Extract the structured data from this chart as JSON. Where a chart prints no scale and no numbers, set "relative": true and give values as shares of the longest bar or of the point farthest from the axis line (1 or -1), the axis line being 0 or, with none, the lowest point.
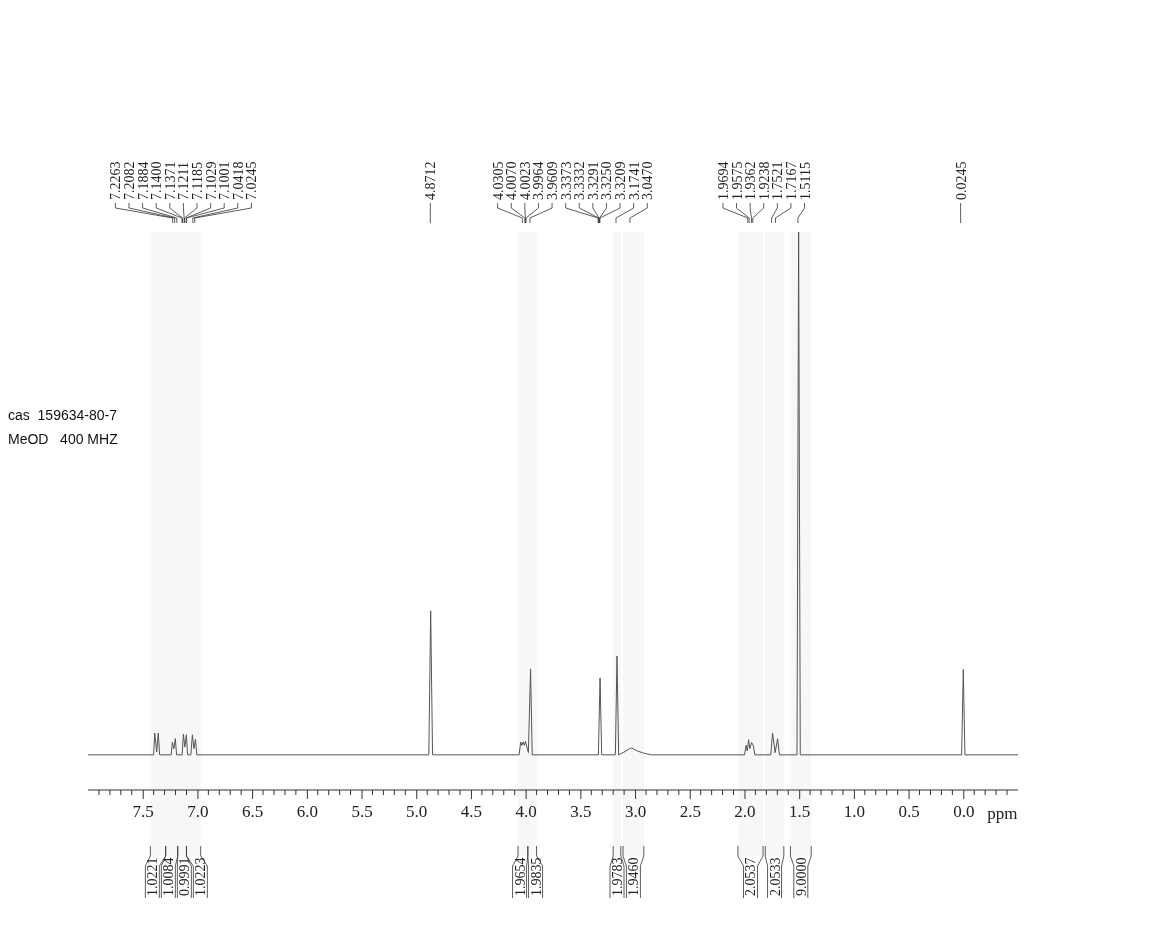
{
  "chart_data": {
    "type": "line",
    "relative": true,
    "xlabel": "ppm",
    "xlim": [
      8.0,
      -0.5
    ],
    "xticks": [
      {
        "value": 7.5,
        "label": "7.5"
      },
      {
        "value": 7.0,
        "label": "7.0"
      },
      {
        "value": 6.5,
        "label": "6.5"
      },
      {
        "value": 6.0,
        "label": "6.0"
      },
      {
        "value": 5.5,
        "label": "5.5"
      },
      {
        "value": 5.0,
        "label": "5.0"
      },
      {
        "value": 4.5,
        "label": "4.5"
      },
      {
        "value": 4.0,
        "label": "4.0"
      },
      {
        "value": 3.5,
        "label": "3.5"
      },
      {
        "value": 3.0,
        "label": "3.0"
      },
      {
        "value": 2.5,
        "label": "2.5"
      },
      {
        "value": 2.0,
        "label": "2.0"
      },
      {
        "value": 1.5,
        "label": "1.5"
      },
      {
        "value": 1.0,
        "label": "1.0"
      },
      {
        "value": 0.5,
        "label": "0.5"
      },
      {
        "value": 0.0,
        "label": "0.0"
      }
    ],
    "series": [
      {
        "color": "#555555",
        "x": [
          8.0,
          7.4,
          7.39,
          7.372,
          7.358,
          7.345,
          7.24,
          7.229,
          7.215,
          7.202,
          7.19,
          7.14,
          7.128,
          7.115,
          7.101,
          7.09,
          7.06,
          7.046,
          7.032,
          7.018,
          7.005,
          4.885,
          4.868,
          4.851,
          4.06,
          4.045,
          4.035,
          4.022,
          4.012,
          4.002,
          3.975,
          3.955,
          3.94,
          3.335,
          3.32,
          3.305,
          3.18,
          3.165,
          3.15,
          3.1,
          3.05,
          3.03,
          2.98,
          2.92,
          2.85,
          2.0,
          1.985,
          1.975,
          1.962,
          1.952,
          1.935,
          1.92,
          1.905,
          1.76,
          1.743,
          1.72,
          1.697,
          1.68,
          1.52,
          1.505,
          1.49,
          0.015,
          0.0,
          -0.015,
          -0.5
        ],
        "values": [
          0.063,
          0.063,
          0.102,
          0.068,
          0.102,
          0.063,
          0.063,
          0.086,
          0.074,
          0.092,
          0.063,
          0.063,
          0.1,
          0.077,
          0.099,
          0.063,
          0.063,
          0.099,
          0.074,
          0.091,
          0.063,
          0.063,
          0.321,
          0.063,
          0.063,
          0.086,
          0.08,
          0.086,
          0.08,
          0.087,
          0.067,
          0.217,
          0.063,
          0.063,
          0.201,
          0.063,
          0.063,
          0.24,
          0.063,
          0.068,
          0.074,
          0.075,
          0.07,
          0.066,
          0.063,
          0.063,
          0.08,
          0.07,
          0.09,
          0.074,
          0.085,
          0.08,
          0.063,
          0.063,
          0.102,
          0.067,
          0.092,
          0.063,
          0.063,
          1,
          0.063,
          0.063,
          0.216,
          0.063,
          0.063
        ]
      }
    ],
    "bands": [
      {
        "axis": "x",
        "from": 7.43,
        "to": 7.29,
        "label": "1.0221"
      },
      {
        "axis": "x",
        "from": 7.29,
        "to": 7.18,
        "label": "1.0084"
      },
      {
        "axis": "x",
        "from": 7.18,
        "to": 7.1,
        "label": "0.9991"
      },
      {
        "axis": "x",
        "from": 7.1,
        "to": 6.97,
        "label": "1.0223"
      },
      {
        "axis": "x",
        "from": 4.07,
        "to": 3.98,
        "label": "1.9654"
      },
      {
        "axis": "x",
        "from": 3.98,
        "to": 3.9,
        "label": "1.9835"
      },
      {
        "axis": "x",
        "from": 3.2,
        "to": 3.13,
        "label": "1.9783"
      },
      {
        "axis": "x",
        "from": 3.11,
        "to": 2.92,
        "label": "1.9460"
      },
      {
        "axis": "x",
        "from": 2.06,
        "to": 1.83,
        "label": "2.0537"
      },
      {
        "axis": "x",
        "from": 1.81,
        "to": 1.64,
        "label": "2.0533"
      },
      {
        "axis": "x",
        "from": 1.58,
        "to": 1.39,
        "label": "9.0000"
      }
    ],
    "annotations": [
      "cas  159634-80-7",
      "MeOD   400 MHZ",
      {
        "text": "7.2263",
        "x": 7.2263
      },
      {
        "text": "7.2082",
        "x": 7.2082
      },
      {
        "text": "7.1884",
        "x": 7.1884
      },
      {
        "text": "7.1400",
        "x": 7.14
      },
      {
        "text": "7.1371",
        "x": 7.1371
      },
      {
        "text": "7.1211",
        "x": 7.1211
      },
      {
        "text": "7.1185",
        "x": 7.1185
      },
      {
        "text": "7.1029",
        "x": 7.1029
      },
      {
        "text": "7.1001",
        "x": 7.1001
      },
      {
        "text": "7.0418",
        "x": 7.0418
      },
      {
        "text": "7.0245",
        "x": 7.0245
      },
      {
        "text": "4.8712",
        "x": 4.8712
      },
      {
        "text": "4.0305",
        "x": 4.0305
      },
      {
        "text": "4.0070",
        "x": 4.007
      },
      {
        "text": "4.0023",
        "x": 4.0023
      },
      {
        "text": "3.9964",
        "x": 3.9964
      },
      {
        "text": "3.9609",
        "x": 3.9609
      },
      {
        "text": "3.3373",
        "x": 3.3373
      },
      {
        "text": "3.3332",
        "x": 3.3332
      },
      {
        "text": "3.3291",
        "x": 3.3291
      },
      {
        "text": "3.3250",
        "x": 3.325
      },
      {
        "text": "3.3209",
        "x": 3.3209
      },
      {
        "text": "3.1741",
        "x": 3.1741
      },
      {
        "text": "3.0470",
        "x": 3.047
      },
      {
        "text": "1.9694",
        "x": 1.9694
      },
      {
        "text": "1.9575",
        "x": 1.9575
      },
      {
        "text": "1.9362",
        "x": 1.9362
      },
      {
        "text": "1.9238",
        "x": 1.9238
      },
      {
        "text": "1.7521",
        "x": 1.7521
      },
      {
        "text": "1.7167",
        "x": 1.7167
      },
      {
        "text": "1.5115",
        "x": 1.5115
      },
      {
        "text": "0.0245",
        "x": 0.0245
      }
    ]
  }
}
